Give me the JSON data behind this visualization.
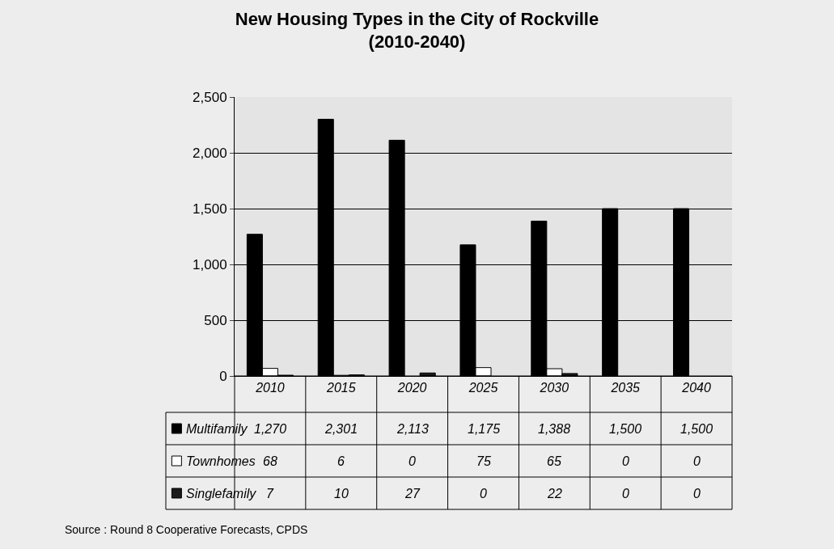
{
  "chart_data": {
    "type": "bar",
    "title": "New Housing Types in the City of Rockville\n(2010-2040)",
    "categories": [
      "2010",
      "2015",
      "2020",
      "2025",
      "2030",
      "2035",
      "2040"
    ],
    "series": [
      {
        "name": "Multifamily",
        "color": "#000000",
        "values": [
          1270,
          2301,
          2113,
          1175,
          1388,
          1500,
          1500
        ],
        "value_labels": [
          "1,270",
          "2,301",
          "2,113",
          "1,175",
          "1,388",
          "1,500",
          "1,500"
        ]
      },
      {
        "name": "Townhomes",
        "color": "#ffffff",
        "values": [
          68,
          6,
          0,
          75,
          65,
          0,
          0
        ],
        "value_labels": [
          "68",
          "6",
          "0",
          "75",
          "65",
          "0",
          "0"
        ]
      },
      {
        "name": "Singlefamily",
        "color": "#1a1a1a",
        "values": [
          7,
          10,
          27,
          0,
          22,
          0,
          0
        ],
        "value_labels": [
          "7",
          "10",
          "27",
          "0",
          "22",
          "0",
          "0"
        ]
      }
    ],
    "ylim": [
      0,
      2500
    ],
    "yticks": [
      {
        "value": 0,
        "label": "0"
      },
      {
        "value": 500,
        "label": "500"
      },
      {
        "value": 1000,
        "label": "1,000"
      },
      {
        "value": 1500,
        "label": "1,500"
      },
      {
        "value": 2000,
        "label": "2,000"
      },
      {
        "value": 2500,
        "label": "2,500"
      }
    ],
    "grid": "y",
    "legend": "bottom left",
    "annotations": [
      "Source : Round 8 Cooperative Forecasts, CPDS"
    ]
  }
}
